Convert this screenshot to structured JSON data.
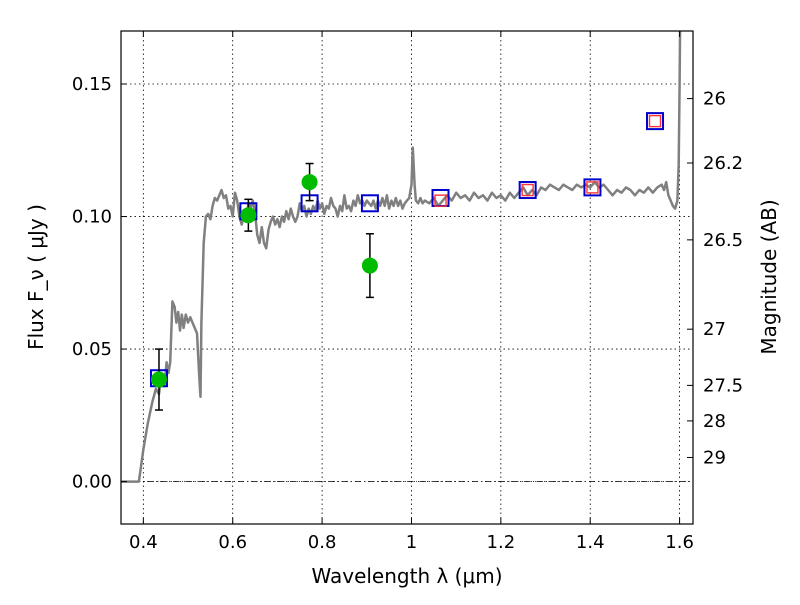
{
  "chart_data": {
    "type": "scatter",
    "xlabel": "Wavelength  λ (μm)",
    "ylabel": "Flux  F_ν  ( μJy )",
    "ylabel_right": "Magnitude (AB)",
    "xlim": [
      0.35,
      1.63
    ],
    "ylim": [
      -0.016,
      0.17
    ],
    "x_ticks": [
      0.4,
      0.6,
      0.8,
      1.0,
      1.2,
      1.4,
      1.6
    ],
    "x_tick_labels": [
      "0.4",
      "0.6",
      "0.8",
      "1",
      "1.2",
      "1.4",
      "1.6"
    ],
    "y_ticks": [
      0.0,
      0.05,
      0.1,
      0.15
    ],
    "y_tick_labels": [
      "0.00",
      "0.05",
      "0.10",
      "0.15"
    ],
    "right_ticks": [
      {
        "label": "26",
        "flux": 0.1445
      },
      {
        "label": "26.2",
        "flux": 0.1202
      },
      {
        "label": "26.5",
        "flux": 0.0912
      },
      {
        "label": "27",
        "flux": 0.0575
      },
      {
        "label": "27.5",
        "flux": 0.0363
      },
      {
        "label": "28",
        "flux": 0.0229
      },
      {
        "label": "29",
        "flux": 0.0091
      }
    ],
    "grid": true,
    "zero_line": true,
    "series": [
      {
        "marker": "line",
        "color": "#808080",
        "points": [
          [
            0.35,
            0.0
          ],
          [
            0.375,
            0.0
          ],
          [
            0.39,
            0.0
          ],
          [
            0.395,
            0.006
          ],
          [
            0.4,
            0.012
          ],
          [
            0.41,
            0.022
          ],
          [
            0.42,
            0.03
          ],
          [
            0.428,
            0.035
          ],
          [
            0.435,
            0.033
          ],
          [
            0.44,
            0.04
          ],
          [
            0.447,
            0.036
          ],
          [
            0.452,
            0.045
          ],
          [
            0.456,
            0.041
          ],
          [
            0.46,
            0.045
          ],
          [
            0.465,
            0.068
          ],
          [
            0.47,
            0.066
          ],
          [
            0.474,
            0.06
          ],
          [
            0.478,
            0.064
          ],
          [
            0.482,
            0.057
          ],
          [
            0.486,
            0.063
          ],
          [
            0.49,
            0.058
          ],
          [
            0.495,
            0.063
          ],
          [
            0.5,
            0.06
          ],
          [
            0.505,
            0.062
          ],
          [
            0.51,
            0.06
          ],
          [
            0.515,
            0.058
          ],
          [
            0.52,
            0.056
          ],
          [
            0.525,
            0.04
          ],
          [
            0.528,
            0.032
          ],
          [
            0.53,
            0.06
          ],
          [
            0.535,
            0.09
          ],
          [
            0.54,
            0.1
          ],
          [
            0.545,
            0.101
          ],
          [
            0.55,
            0.099
          ],
          [
            0.555,
            0.104
          ],
          [
            0.56,
            0.107
          ],
          [
            0.565,
            0.106
          ],
          [
            0.57,
            0.108
          ],
          [
            0.575,
            0.11
          ],
          [
            0.58,
            0.107
          ],
          [
            0.585,
            0.108
          ],
          [
            0.59,
            0.103
          ],
          [
            0.595,
            0.104
          ],
          [
            0.6,
            0.1
          ],
          [
            0.605,
            0.109
          ],
          [
            0.61,
            0.106
          ],
          [
            0.615,
            0.1
          ],
          [
            0.62,
            0.097
          ],
          [
            0.625,
            0.1
          ],
          [
            0.63,
            0.098
          ],
          [
            0.635,
            0.105
          ],
          [
            0.64,
            0.103
          ],
          [
            0.645,
            0.106
          ],
          [
            0.65,
            0.101
          ],
          [
            0.655,
            0.093
          ],
          [
            0.66,
            0.09
          ],
          [
            0.665,
            0.096
          ],
          [
            0.67,
            0.09
          ],
          [
            0.675,
            0.088
          ],
          [
            0.68,
            0.095
          ],
          [
            0.685,
            0.098
          ],
          [
            0.69,
            0.1
          ],
          [
            0.695,
            0.097
          ],
          [
            0.7,
            0.099
          ],
          [
            0.705,
            0.096
          ],
          [
            0.71,
            0.1
          ],
          [
            0.715,
            0.098
          ],
          [
            0.72,
            0.102
          ],
          [
            0.725,
            0.099
          ],
          [
            0.73,
            0.103
          ],
          [
            0.735,
            0.1
          ],
          [
            0.74,
            0.098
          ],
          [
            0.745,
            0.1
          ],
          [
            0.75,
            0.105
          ],
          [
            0.755,
            0.102
          ],
          [
            0.76,
            0.104
          ],
          [
            0.765,
            0.1
          ],
          [
            0.77,
            0.103
          ],
          [
            0.775,
            0.101
          ],
          [
            0.78,
            0.104
          ],
          [
            0.785,
            0.102
          ],
          [
            0.79,
            0.106
          ],
          [
            0.795,
            0.103
          ],
          [
            0.8,
            0.105
          ],
          [
            0.805,
            0.101
          ],
          [
            0.81,
            0.104
          ],
          [
            0.815,
            0.103
          ],
          [
            0.82,
            0.107
          ],
          [
            0.825,
            0.104
          ],
          [
            0.83,
            0.103
          ],
          [
            0.835,
            0.1
          ],
          [
            0.84,
            0.104
          ],
          [
            0.845,
            0.102
          ],
          [
            0.85,
            0.108
          ],
          [
            0.855,
            0.103
          ],
          [
            0.86,
            0.104
          ],
          [
            0.865,
            0.102
          ],
          [
            0.87,
            0.106
          ],
          [
            0.875,
            0.104
          ],
          [
            0.88,
            0.108
          ],
          [
            0.885,
            0.105
          ],
          [
            0.89,
            0.106
          ],
          [
            0.895,
            0.104
          ],
          [
            0.9,
            0.106
          ],
          [
            0.905,
            0.105
          ],
          [
            0.91,
            0.104
          ],
          [
            0.915,
            0.106
          ],
          [
            0.92,
            0.103
          ],
          [
            0.925,
            0.106
          ],
          [
            0.93,
            0.104
          ],
          [
            0.935,
            0.107
          ],
          [
            0.94,
            0.104
          ],
          [
            0.945,
            0.108
          ],
          [
            0.95,
            0.103
          ],
          [
            0.955,
            0.106
          ],
          [
            0.96,
            0.104
          ],
          [
            0.965,
            0.107
          ],
          [
            0.97,
            0.104
          ],
          [
            0.975,
            0.106
          ],
          [
            0.98,
            0.103
          ],
          [
            0.985,
            0.105
          ],
          [
            0.99,
            0.106
          ],
          [
            0.995,
            0.107
          ],
          [
            1.0,
            0.112
          ],
          [
            1.003,
            0.126
          ],
          [
            1.007,
            0.112
          ],
          [
            1.01,
            0.106
          ],
          [
            1.015,
            0.105
          ],
          [
            1.02,
            0.107
          ],
          [
            1.025,
            0.105
          ],
          [
            1.03,
            0.106
          ],
          [
            1.04,
            0.105
          ],
          [
            1.05,
            0.107
          ],
          [
            1.06,
            0.104
          ],
          [
            1.07,
            0.106
          ],
          [
            1.08,
            0.108
          ],
          [
            1.09,
            0.106
          ],
          [
            1.1,
            0.109
          ],
          [
            1.11,
            0.107
          ],
          [
            1.12,
            0.108
          ],
          [
            1.13,
            0.106
          ],
          [
            1.14,
            0.109
          ],
          [
            1.15,
            0.107
          ],
          [
            1.16,
            0.108
          ],
          [
            1.17,
            0.106
          ],
          [
            1.18,
            0.109
          ],
          [
            1.19,
            0.107
          ],
          [
            1.2,
            0.108
          ],
          [
            1.21,
            0.106
          ],
          [
            1.22,
            0.109
          ],
          [
            1.23,
            0.107
          ],
          [
            1.24,
            0.109
          ],
          [
            1.25,
            0.111
          ],
          [
            1.26,
            0.108
          ],
          [
            1.27,
            0.11
          ],
          [
            1.28,
            0.108
          ],
          [
            1.29,
            0.111
          ],
          [
            1.3,
            0.11
          ],
          [
            1.31,
            0.112
          ],
          [
            1.32,
            0.111
          ],
          [
            1.33,
            0.11
          ],
          [
            1.34,
            0.112
          ],
          [
            1.35,
            0.111
          ],
          [
            1.36,
            0.11
          ],
          [
            1.37,
            0.112
          ],
          [
            1.38,
            0.111
          ],
          [
            1.39,
            0.112
          ],
          [
            1.4,
            0.111
          ],
          [
            1.41,
            0.113
          ],
          [
            1.42,
            0.111
          ],
          [
            1.43,
            0.112
          ],
          [
            1.44,
            0.11
          ],
          [
            1.45,
            0.108
          ],
          [
            1.46,
            0.11
          ],
          [
            1.47,
            0.109
          ],
          [
            1.48,
            0.111
          ],
          [
            1.49,
            0.11
          ],
          [
            1.5,
            0.108
          ],
          [
            1.51,
            0.11
          ],
          [
            1.52,
            0.109
          ],
          [
            1.53,
            0.111
          ],
          [
            1.54,
            0.109
          ],
          [
            1.55,
            0.111
          ],
          [
            1.56,
            0.112
          ],
          [
            1.565,
            0.11
          ],
          [
            1.57,
            0.113
          ],
          [
            1.575,
            0.108
          ],
          [
            1.58,
            0.106
          ],
          [
            1.585,
            0.104
          ],
          [
            1.59,
            0.103
          ],
          [
            1.595,
            0.106
          ],
          [
            1.598,
            0.12
          ],
          [
            1.6,
            0.15
          ],
          [
            1.602,
            0.19
          ]
        ]
      },
      {
        "marker": "open-square",
        "color": "#0000cc",
        "points": [
          [
            0.435,
            0.039
          ],
          [
            0.635,
            0.102
          ],
          [
            0.772,
            0.105
          ],
          [
            0.907,
            0.105
          ],
          [
            1.065,
            0.107
          ],
          [
            1.26,
            0.11
          ],
          [
            1.405,
            0.111
          ],
          [
            1.545,
            0.136
          ]
        ]
      },
      {
        "marker": "open-square-small",
        "color": "#ff3333",
        "points": [
          [
            1.065,
            0.106
          ],
          [
            1.26,
            0.11
          ],
          [
            1.405,
            0.111
          ],
          [
            1.545,
            0.136
          ]
        ]
      },
      {
        "marker": "circle",
        "color": "#00bb00",
        "points": [
          [
            0.435,
            0.0385
          ],
          [
            0.635,
            0.1005
          ],
          [
            0.772,
            0.113
          ],
          [
            0.907,
            0.0815
          ]
        ],
        "errors": [
          0.0115,
          0.006,
          0.007,
          0.012
        ]
      }
    ]
  }
}
